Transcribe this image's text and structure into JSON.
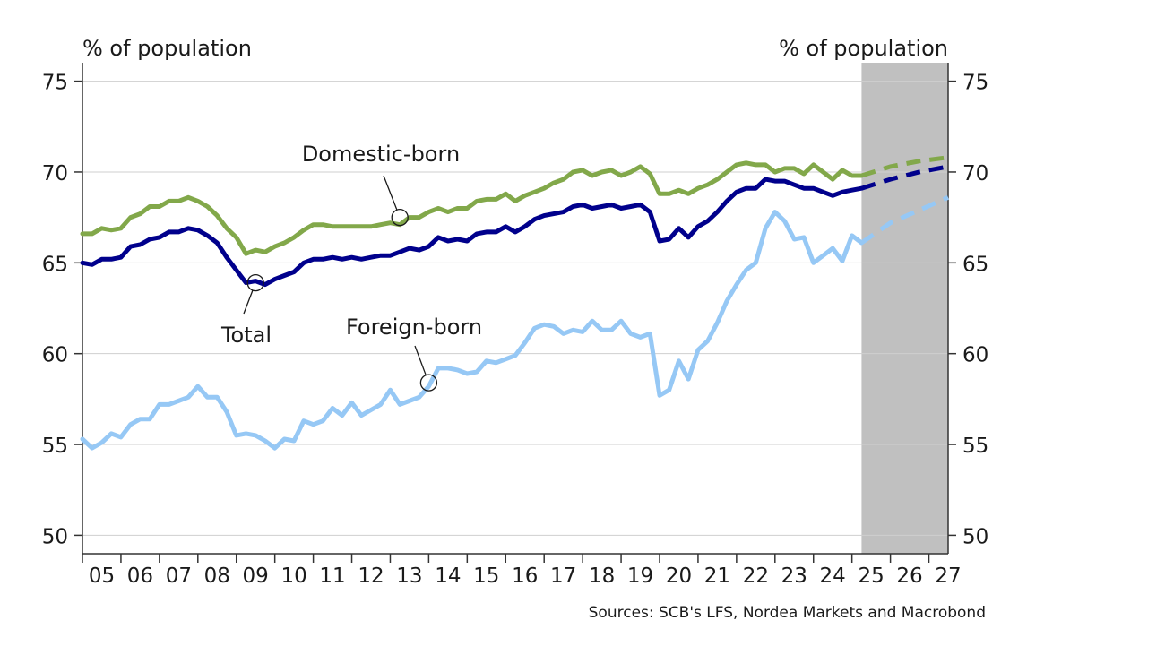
{
  "chart_data": {
    "type": "line",
    "ylabel_left": "% of population",
    "ylabel_right": "% of population",
    "ylim": [
      50,
      75
    ],
    "yticks": [
      50,
      55,
      60,
      65,
      70,
      75
    ],
    "xlim": [
      2005,
      2027.5
    ],
    "xticks": [
      "05",
      "06",
      "07",
      "08",
      "09",
      "10",
      "11",
      "12",
      "13",
      "14",
      "15",
      "16",
      "17",
      "18",
      "19",
      "20",
      "21",
      "22",
      "23",
      "24",
      "25",
      "26",
      "27"
    ],
    "forecast_shading": {
      "from": 2025.25,
      "to": 2027.5,
      "color": "#c0c0c0"
    },
    "grid": true,
    "legend": "none",
    "source": "Sources: SCB's LFS, Nordea Markets and Macrobond",
    "series": [
      {
        "name": "Domestic-born",
        "color": "#82a84a",
        "x": [
          2005.0,
          2005.25,
          2005.5,
          2005.75,
          2006.0,
          2006.25,
          2006.5,
          2006.75,
          2007.0,
          2007.25,
          2007.5,
          2007.75,
          2008.0,
          2008.25,
          2008.5,
          2008.75,
          2009.0,
          2009.25,
          2009.5,
          2009.75,
          2010.0,
          2010.25,
          2010.5,
          2010.75,
          2011.0,
          2011.25,
          2011.5,
          2011.75,
          2012.0,
          2012.25,
          2012.5,
          2012.75,
          2013.0,
          2013.25,
          2013.5,
          2013.75,
          2014.0,
          2014.25,
          2014.5,
          2014.75,
          2015.0,
          2015.25,
          2015.5,
          2015.75,
          2016.0,
          2016.25,
          2016.5,
          2016.75,
          2017.0,
          2017.25,
          2017.5,
          2017.75,
          2018.0,
          2018.25,
          2018.5,
          2018.75,
          2019.0,
          2019.25,
          2019.5,
          2019.75,
          2020.0,
          2020.25,
          2020.5,
          2020.75,
          2021.0,
          2021.25,
          2021.5,
          2021.75,
          2022.0,
          2022.25,
          2022.5,
          2022.75,
          2023.0,
          2023.25,
          2023.5,
          2023.75,
          2024.0,
          2024.25,
          2024.5,
          2024.75,
          2025.0,
          2025.25
        ],
        "values": [
          66.6,
          66.6,
          66.9,
          66.8,
          66.9,
          67.5,
          67.7,
          68.1,
          68.1,
          68.4,
          68.4,
          68.6,
          68.4,
          68.1,
          67.6,
          66.9,
          66.4,
          65.5,
          65.7,
          65.6,
          65.9,
          66.1,
          66.4,
          66.8,
          67.1,
          67.1,
          67.0,
          67.0,
          67.0,
          67.0,
          67.0,
          67.1,
          67.2,
          67.1,
          67.5,
          67.5,
          67.8,
          68.0,
          67.8,
          68.0,
          68.0,
          68.4,
          68.5,
          68.5,
          68.8,
          68.4,
          68.7,
          68.9,
          69.1,
          69.4,
          69.6,
          70.0,
          70.1,
          69.8,
          70.0,
          70.1,
          69.8,
          70.0,
          70.3,
          69.9,
          68.8,
          68.8,
          69.0,
          68.8,
          69.1,
          69.3,
          69.6,
          70.0,
          70.4,
          70.5,
          70.4,
          70.4,
          70.0,
          70.2,
          70.2,
          69.9,
          70.4,
          70.0,
          69.6,
          70.1,
          69.8,
          69.8
        ],
        "forecast": {
          "x": [
            2025.25,
            2026.0,
            2026.75,
            2027.5
          ],
          "values": [
            69.8,
            70.3,
            70.6,
            70.8
          ]
        }
      },
      {
        "name": "Total",
        "color": "#00008c",
        "x": [
          2005.0,
          2005.25,
          2005.5,
          2005.75,
          2006.0,
          2006.25,
          2006.5,
          2006.75,
          2007.0,
          2007.25,
          2007.5,
          2007.75,
          2008.0,
          2008.25,
          2008.5,
          2008.75,
          2009.0,
          2009.25,
          2009.5,
          2009.75,
          2010.0,
          2010.25,
          2010.5,
          2010.75,
          2011.0,
          2011.25,
          2011.5,
          2011.75,
          2012.0,
          2012.25,
          2012.5,
          2012.75,
          2013.0,
          2013.25,
          2013.5,
          2013.75,
          2014.0,
          2014.25,
          2014.5,
          2014.75,
          2015.0,
          2015.25,
          2015.5,
          2015.75,
          2016.0,
          2016.25,
          2016.5,
          2016.75,
          2017.0,
          2017.25,
          2017.5,
          2017.75,
          2018.0,
          2018.25,
          2018.5,
          2018.75,
          2019.0,
          2019.25,
          2019.5,
          2019.75,
          2020.0,
          2020.25,
          2020.5,
          2020.75,
          2021.0,
          2021.25,
          2021.5,
          2021.75,
          2022.0,
          2022.25,
          2022.5,
          2022.75,
          2023.0,
          2023.25,
          2023.5,
          2023.75,
          2024.0,
          2024.25,
          2024.5,
          2024.75,
          2025.0,
          2025.25
        ],
        "values": [
          65.0,
          64.9,
          65.2,
          65.2,
          65.3,
          65.9,
          66.0,
          66.3,
          66.4,
          66.7,
          66.7,
          66.9,
          66.8,
          66.5,
          66.1,
          65.3,
          64.6,
          63.9,
          64.0,
          63.8,
          64.1,
          64.3,
          64.5,
          65.0,
          65.2,
          65.2,
          65.3,
          65.2,
          65.3,
          65.2,
          65.3,
          65.4,
          65.4,
          65.6,
          65.8,
          65.7,
          65.9,
          66.4,
          66.2,
          66.3,
          66.2,
          66.6,
          66.7,
          66.7,
          67.0,
          66.7,
          67.0,
          67.4,
          67.6,
          67.7,
          67.8,
          68.1,
          68.2,
          68.0,
          68.1,
          68.2,
          68.0,
          68.1,
          68.2,
          67.8,
          66.2,
          66.3,
          66.9,
          66.4,
          67.0,
          67.3,
          67.8,
          68.4,
          68.9,
          69.1,
          69.1,
          69.6,
          69.5,
          69.5,
          69.3,
          69.1,
          69.1,
          68.9,
          68.7,
          68.9,
          69.0,
          69.1
        ],
        "forecast": {
          "x": [
            2025.25,
            2026.0,
            2026.75,
            2027.5
          ],
          "values": [
            69.1,
            69.6,
            70.0,
            70.3
          ]
        }
      },
      {
        "name": "Foreign-born",
        "color": "#96c8f5",
        "x": [
          2005.0,
          2005.25,
          2005.5,
          2005.75,
          2006.0,
          2006.25,
          2006.5,
          2006.75,
          2007.0,
          2007.25,
          2007.5,
          2007.75,
          2008.0,
          2008.25,
          2008.5,
          2008.75,
          2009.0,
          2009.25,
          2009.5,
          2009.75,
          2010.0,
          2010.25,
          2010.5,
          2010.75,
          2011.0,
          2011.25,
          2011.5,
          2011.75,
          2012.0,
          2012.25,
          2012.5,
          2012.75,
          2013.0,
          2013.25,
          2013.5,
          2013.75,
          2014.0,
          2014.25,
          2014.5,
          2014.75,
          2015.0,
          2015.25,
          2015.5,
          2015.75,
          2016.0,
          2016.25,
          2016.5,
          2016.75,
          2017.0,
          2017.25,
          2017.5,
          2017.75,
          2018.0,
          2018.25,
          2018.5,
          2018.75,
          2019.0,
          2019.25,
          2019.5,
          2019.75,
          2020.0,
          2020.25,
          2020.5,
          2020.75,
          2021.0,
          2021.25,
          2021.5,
          2021.75,
          2022.0,
          2022.25,
          2022.5,
          2022.75,
          2023.0,
          2023.25,
          2023.5,
          2023.75,
          2024.0,
          2024.25,
          2024.5,
          2024.75,
          2025.0,
          2025.25
        ],
        "values": [
          55.3,
          54.8,
          55.1,
          55.6,
          55.4,
          56.1,
          56.4,
          56.4,
          57.2,
          57.2,
          57.4,
          57.6,
          58.2,
          57.6,
          57.6,
          56.8,
          55.5,
          55.6,
          55.5,
          55.2,
          54.8,
          55.3,
          55.2,
          56.3,
          56.1,
          56.3,
          57.0,
          56.6,
          57.3,
          56.6,
          56.9,
          57.2,
          58.0,
          57.2,
          57.4,
          57.6,
          58.2,
          59.2,
          59.2,
          59.1,
          58.9,
          59.0,
          59.6,
          59.5,
          59.7,
          59.9,
          60.6,
          61.4,
          61.6,
          61.5,
          61.1,
          61.3,
          61.2,
          61.8,
          61.3,
          61.3,
          61.8,
          61.1,
          60.9,
          61.1,
          57.7,
          58.0,
          59.6,
          58.6,
          60.2,
          60.7,
          61.7,
          62.9,
          63.8,
          64.6,
          65.0,
          66.9,
          67.8,
          67.3,
          66.3,
          66.4,
          65.0,
          65.4,
          65.8,
          65.1,
          66.5,
          66.1
        ],
        "forecast": {
          "x": [
            2025.25,
            2026.0,
            2026.75,
            2027.5
          ],
          "values": [
            66.1,
            67.2,
            67.9,
            68.6
          ]
        }
      }
    ],
    "annotations": [
      {
        "text": "Domestic-born",
        "series": "Domestic-born",
        "x": 2013.25,
        "y": 67.5
      },
      {
        "text": "Total",
        "series": "Total",
        "x": 2009.5,
        "y": 63.9
      },
      {
        "text": "Foreign-born",
        "series": "Foreign-born",
        "x": 2014.0,
        "y": 58.4
      }
    ]
  }
}
